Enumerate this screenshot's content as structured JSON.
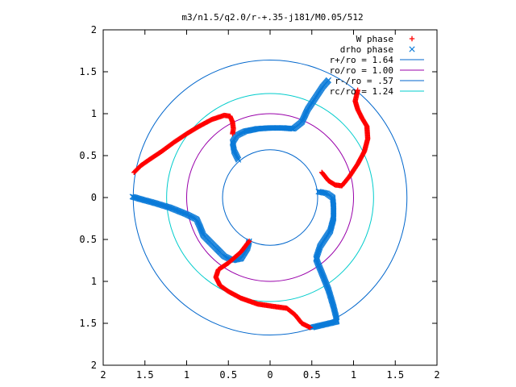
{
  "chart_data": {
    "type": "scatter",
    "title": "m3/n1.5/q2.0/r-+.35-j181/M0.05/512",
    "xlim": [
      -2,
      2
    ],
    "ylim": [
      -2,
      2
    ],
    "x_ticks": [
      "2",
      "1.5",
      "1",
      "0.5",
      "0",
      "0.5",
      "1",
      "1.5",
      "2"
    ],
    "y_ticks": [
      "2",
      "1.5",
      "1",
      "0.5",
      "0",
      "0.5",
      "1",
      "1.5",
      "2"
    ],
    "grid": false,
    "legend_position": "top-right",
    "circles": [
      {
        "label": "r+/ro = 1.64",
        "radius": 1.64,
        "color": "#0066cc"
      },
      {
        "label": "ro/ro = 1.00",
        "radius": 1.0,
        "color": "#9900aa"
      },
      {
        "label": "r-/ro = .57",
        "radius": 0.57,
        "color": "#0066cc"
      },
      {
        "label": "rc/ro = 1.24",
        "radius": 1.24,
        "color": "#00cccc"
      }
    ],
    "series": [
      {
        "name": "W phase",
        "marker": "plus",
        "color": "#ff0000",
        "arms": [
          [
            [
              -1.63,
              0.3
            ],
            [
              -1.55,
              0.38
            ],
            [
              -1.45,
              0.45
            ],
            [
              -1.3,
              0.55
            ],
            [
              -1.15,
              0.66
            ],
            [
              -1.0,
              0.76
            ],
            [
              -0.85,
              0.85
            ],
            [
              -0.7,
              0.93
            ],
            [
              -0.55,
              0.98
            ],
            [
              -0.48,
              0.97
            ],
            [
              -0.45,
              0.9
            ],
            [
              -0.44,
              0.82
            ],
            [
              -0.45,
              0.76
            ]
          ],
          [
            [
              0.62,
              0.3
            ],
            [
              0.7,
              0.2
            ],
            [
              0.78,
              0.15
            ],
            [
              0.86,
              0.14
            ],
            [
              0.95,
              0.25
            ],
            [
              1.05,
              0.4
            ],
            [
              1.13,
              0.55
            ],
            [
              1.17,
              0.7
            ],
            [
              1.16,
              0.85
            ],
            [
              1.1,
              0.95
            ],
            [
              1.05,
              1.05
            ],
            [
              1.02,
              1.15
            ],
            [
              1.05,
              1.28
            ]
          ],
          [
            [
              -0.25,
              -0.52
            ],
            [
              -0.35,
              -0.65
            ],
            [
              -0.5,
              -0.78
            ],
            [
              -0.62,
              -0.86
            ],
            [
              -0.65,
              -0.95
            ],
            [
              -0.6,
              -1.05
            ],
            [
              -0.5,
              -1.12
            ],
            [
              -0.35,
              -1.2
            ],
            [
              -0.15,
              -1.27
            ],
            [
              0.05,
              -1.3
            ],
            [
              0.2,
              -1.32
            ],
            [
              0.3,
              -1.4
            ],
            [
              0.38,
              -1.5
            ],
            [
              0.48,
              -1.55
            ]
          ]
        ]
      },
      {
        "name": "drho phase",
        "marker": "x",
        "color": "#0a7ad8",
        "arms": [
          [
            [
              -1.65,
              0.01
            ],
            [
              -1.55,
              -0.02
            ],
            [
              -1.4,
              -0.06
            ],
            [
              -1.2,
              -0.12
            ],
            [
              -1.0,
              -0.2
            ],
            [
              -0.88,
              -0.26
            ],
            [
              -0.84,
              -0.35
            ],
            [
              -0.8,
              -0.45
            ],
            [
              -0.7,
              -0.55
            ],
            [
              -0.55,
              -0.7
            ],
            [
              -0.45,
              -0.75
            ],
            [
              -0.35,
              -0.73
            ],
            [
              -0.27,
              -0.6
            ],
            [
              -0.25,
              -0.52
            ]
          ],
          [
            [
              -0.38,
              0.45
            ],
            [
              -0.43,
              0.55
            ],
            [
              -0.45,
              0.66
            ],
            [
              -0.4,
              0.74
            ],
            [
              -0.3,
              0.79
            ],
            [
              -0.15,
              0.82
            ],
            [
              0.0,
              0.83
            ],
            [
              0.15,
              0.83
            ],
            [
              0.28,
              0.82
            ],
            [
              0.38,
              0.9
            ],
            [
              0.45,
              1.05
            ],
            [
              0.55,
              1.2
            ],
            [
              0.63,
              1.32
            ],
            [
              0.7,
              1.4
            ]
          ],
          [
            [
              0.58,
              0.07
            ],
            [
              0.68,
              0.05
            ],
            [
              0.75,
              0.0
            ],
            [
              0.76,
              -0.1
            ],
            [
              0.76,
              -0.25
            ],
            [
              0.72,
              -0.4
            ],
            [
              0.6,
              -0.58
            ],
            [
              0.55,
              -0.73
            ],
            [
              0.62,
              -0.9
            ],
            [
              0.7,
              -1.1
            ],
            [
              0.76,
              -1.3
            ],
            [
              0.79,
              -1.42
            ],
            [
              0.8,
              -1.48
            ],
            [
              0.5,
              -1.55
            ]
          ]
        ]
      }
    ]
  }
}
